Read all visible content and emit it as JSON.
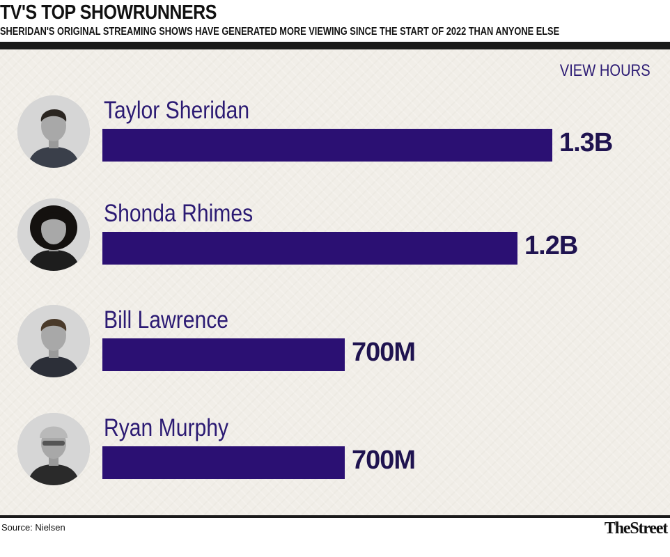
{
  "header": {
    "title": "TV'S TOP SHOWRUNNERS",
    "subtitle": "SHERIDAN'S ORIGINAL STREAMING SHOWS HAVE GENERATED MORE VIEWING SINCE THE START OF 2022 THAN ANYONE ELSE"
  },
  "unit_label": "VIEW HOURS",
  "footer": {
    "source": "Source: Nielsen",
    "logo": "TheStreet"
  },
  "colors": {
    "bar": "#2b1073",
    "name_text": "#2b1a73",
    "value_text": "#1f1350",
    "background": "#f1eee8",
    "rule": "#1a1a1a"
  },
  "chart_data": {
    "type": "bar",
    "orientation": "horizontal",
    "title": "TV'S TOP SHOWRUNNERS",
    "subtitle": "SHERIDAN'S ORIGINAL STREAMING SHOWS HAVE GENERATED MORE VIEWING SINCE THE START OF 2022 THAN ANYONE ELSE",
    "unit": "VIEW HOURS",
    "categories": [
      "Taylor Sheridan",
      "Shonda Rhimes",
      "Bill Lawrence",
      "Ryan Murphy"
    ],
    "values": [
      1300000000,
      1200000000,
      700000000,
      700000000
    ],
    "value_labels": [
      "1.3B",
      "1.2B",
      "700M",
      "700M"
    ],
    "headshot_icons": [
      "taylor-sheridan-headshot",
      "shonda-rhimes-headshot",
      "bill-lawrence-headshot",
      "ryan-murphy-headshot"
    ],
    "xlim": [
      0,
      1300000000
    ],
    "grid": false,
    "legend": "none"
  }
}
